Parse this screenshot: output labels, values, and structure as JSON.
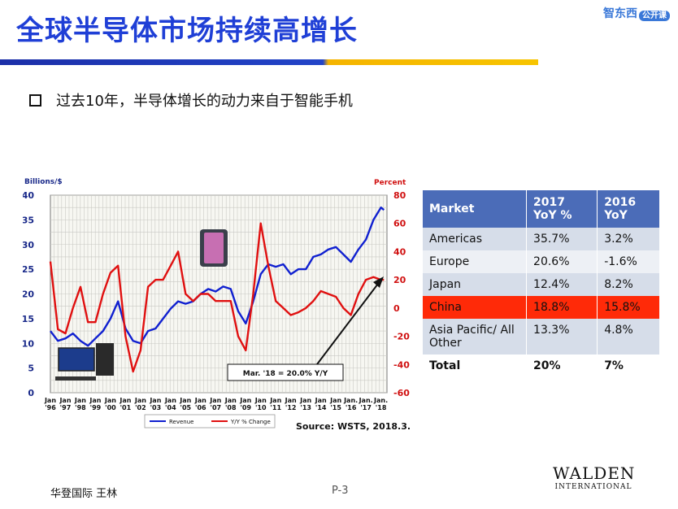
{
  "slide": {
    "title": "全球半导体市场持续高增长",
    "brand": "智东西",
    "brand_tag": "公开课",
    "bullet": "过去10年，半导体增长的动力来自于智能手机",
    "footer_left": "华登国际 王林",
    "page": "P-3",
    "logo_name": "WALDEN",
    "logo_sub": "INTERNATIONAL"
  },
  "chart_data": {
    "type": "line",
    "ylabel_left": "Billions/$",
    "ylabel_right": "Percent",
    "ylim_left": [
      0,
      40
    ],
    "ylim_right": [
      -60,
      80
    ],
    "left_ticks": [
      "40",
      "35",
      "30",
      "25",
      "20",
      "15",
      "10",
      "5",
      "0"
    ],
    "right_ticks": [
      "80",
      "60",
      "40",
      "20",
      "0",
      "-20",
      "-40",
      "-60"
    ],
    "x_ticks": [
      "Jan '96",
      "Jan '97",
      "Jan '98",
      "Jan '99",
      "Jan '00",
      "Jan '01",
      "Jan '02",
      "Jan '03",
      "Jan '04",
      "Jan '05",
      "Jan '06",
      "Jan '07",
      "Jan '08",
      "Jan '09",
      "Jan '10",
      "Jan '11",
      "Jan '12",
      "Jan '13",
      "Jan '14",
      "Jan '15",
      "Jan. '16",
      "Jan. '17",
      "Jan. '18"
    ],
    "x_ticks_top": [
      "Jan",
      "Jan",
      "Jan",
      "Jan",
      "Jan",
      "Jan",
      "Jan",
      "Jan",
      "Jan",
      "Jan",
      "Jan",
      "Jan",
      "Jan",
      "Jan",
      "Jan",
      "Jan",
      "Jan",
      "Jan",
      "Jan",
      "Jan",
      "Jan.",
      "Jan.",
      "Jan."
    ],
    "x_ticks_bottom": [
      "'96",
      "'97",
      "'98",
      "'99",
      "'00",
      "'01",
      "'02",
      "'03",
      "'04",
      "'05",
      "'06",
      "'07",
      "'08",
      "'09",
      "'10",
      "'11",
      "'12",
      "'13",
      "'14",
      "'15",
      "'16",
      "'17",
      "'18"
    ],
    "grid": true,
    "series": [
      {
        "name": "Revenue",
        "axis": "left",
        "color": "#1020d0",
        "x": [
          1996.0,
          1996.5,
          1997.0,
          1997.5,
          1998.0,
          1998.5,
          1999.0,
          1999.5,
          2000.0,
          2000.5,
          2001.0,
          2001.5,
          2002.0,
          2002.5,
          2003.0,
          2003.5,
          2004.0,
          2004.5,
          2005.0,
          2005.5,
          2006.0,
          2006.5,
          2007.0,
          2007.5,
          2008.0,
          2008.5,
          2009.0,
          2009.5,
          2010.0,
          2010.5,
          2011.0,
          2011.5,
          2012.0,
          2012.5,
          2013.0,
          2013.5,
          2014.0,
          2014.5,
          2015.0,
          2015.5,
          2016.0,
          2016.5,
          2017.0,
          2017.5,
          2018.0,
          2018.2
        ],
        "values": [
          12.5,
          10.5,
          11,
          12,
          10.5,
          9.5,
          11,
          12.5,
          15,
          18.5,
          13,
          10.5,
          10,
          12.5,
          13,
          15,
          17,
          18.5,
          18,
          18.5,
          20,
          21,
          20.5,
          21.5,
          21,
          16.5,
          14,
          18.5,
          24,
          26,
          25.5,
          26,
          24,
          25,
          25,
          27.5,
          28,
          29,
          29.5,
          28,
          26.5,
          29,
          31,
          35,
          37.5,
          37
        ]
      },
      {
        "name": "Y/Y % Change",
        "axis": "right",
        "color": "#e01010",
        "x": [
          1996.0,
          1996.5,
          1997.0,
          1997.5,
          1998.0,
          1998.5,
          1999.0,
          1999.5,
          2000.0,
          2000.5,
          2001.0,
          2001.5,
          2002.0,
          2002.5,
          2003.0,
          2003.5,
          2004.0,
          2004.5,
          2005.0,
          2005.5,
          2006.0,
          2006.5,
          2007.0,
          2007.5,
          2008.0,
          2008.5,
          2009.0,
          2009.5,
          2010.0,
          2010.5,
          2011.0,
          2011.5,
          2012.0,
          2012.5,
          2013.0,
          2013.5,
          2014.0,
          2014.5,
          2015.0,
          2015.5,
          2016.0,
          2016.5,
          2017.0,
          2017.5,
          2018.0,
          2018.2
        ],
        "values": [
          33,
          -15,
          -18,
          0,
          15,
          -10,
          -10,
          10,
          25,
          30,
          -20,
          -45,
          -30,
          15,
          20,
          20,
          30,
          40,
          10,
          5,
          10,
          10,
          5,
          5,
          5,
          -20,
          -30,
          10,
          60,
          30,
          5,
          0,
          -5,
          -3,
          0,
          5,
          12,
          10,
          8,
          0,
          -5,
          10,
          20,
          22,
          20,
          20
        ]
      }
    ],
    "legend": [
      "Revenue",
      "Y/Y % Change"
    ],
    "legend_position": "bottom",
    "annotation": "Mar. '18 = 20.0% Y/Y",
    "source": "Source: WSTS, 2018.3."
  },
  "table": {
    "headers": [
      "Market",
      "2017 YoY %",
      "2016 YoY"
    ],
    "rows": [
      [
        "Americas",
        "35.7%",
        "3.2%"
      ],
      [
        "Europe",
        "20.6%",
        "-1.6%"
      ],
      [
        "Japan",
        "12.4%",
        "8.2%"
      ],
      [
        "China",
        "18.8%",
        "15.8%"
      ],
      [
        "Asia Pacific/ All Other",
        "13.3%",
        "4.8%"
      ],
      [
        "Total",
        "20%",
        "7%"
      ]
    ],
    "highlight_color": "#ff2a08",
    "header_color": "#4b6cb8"
  }
}
